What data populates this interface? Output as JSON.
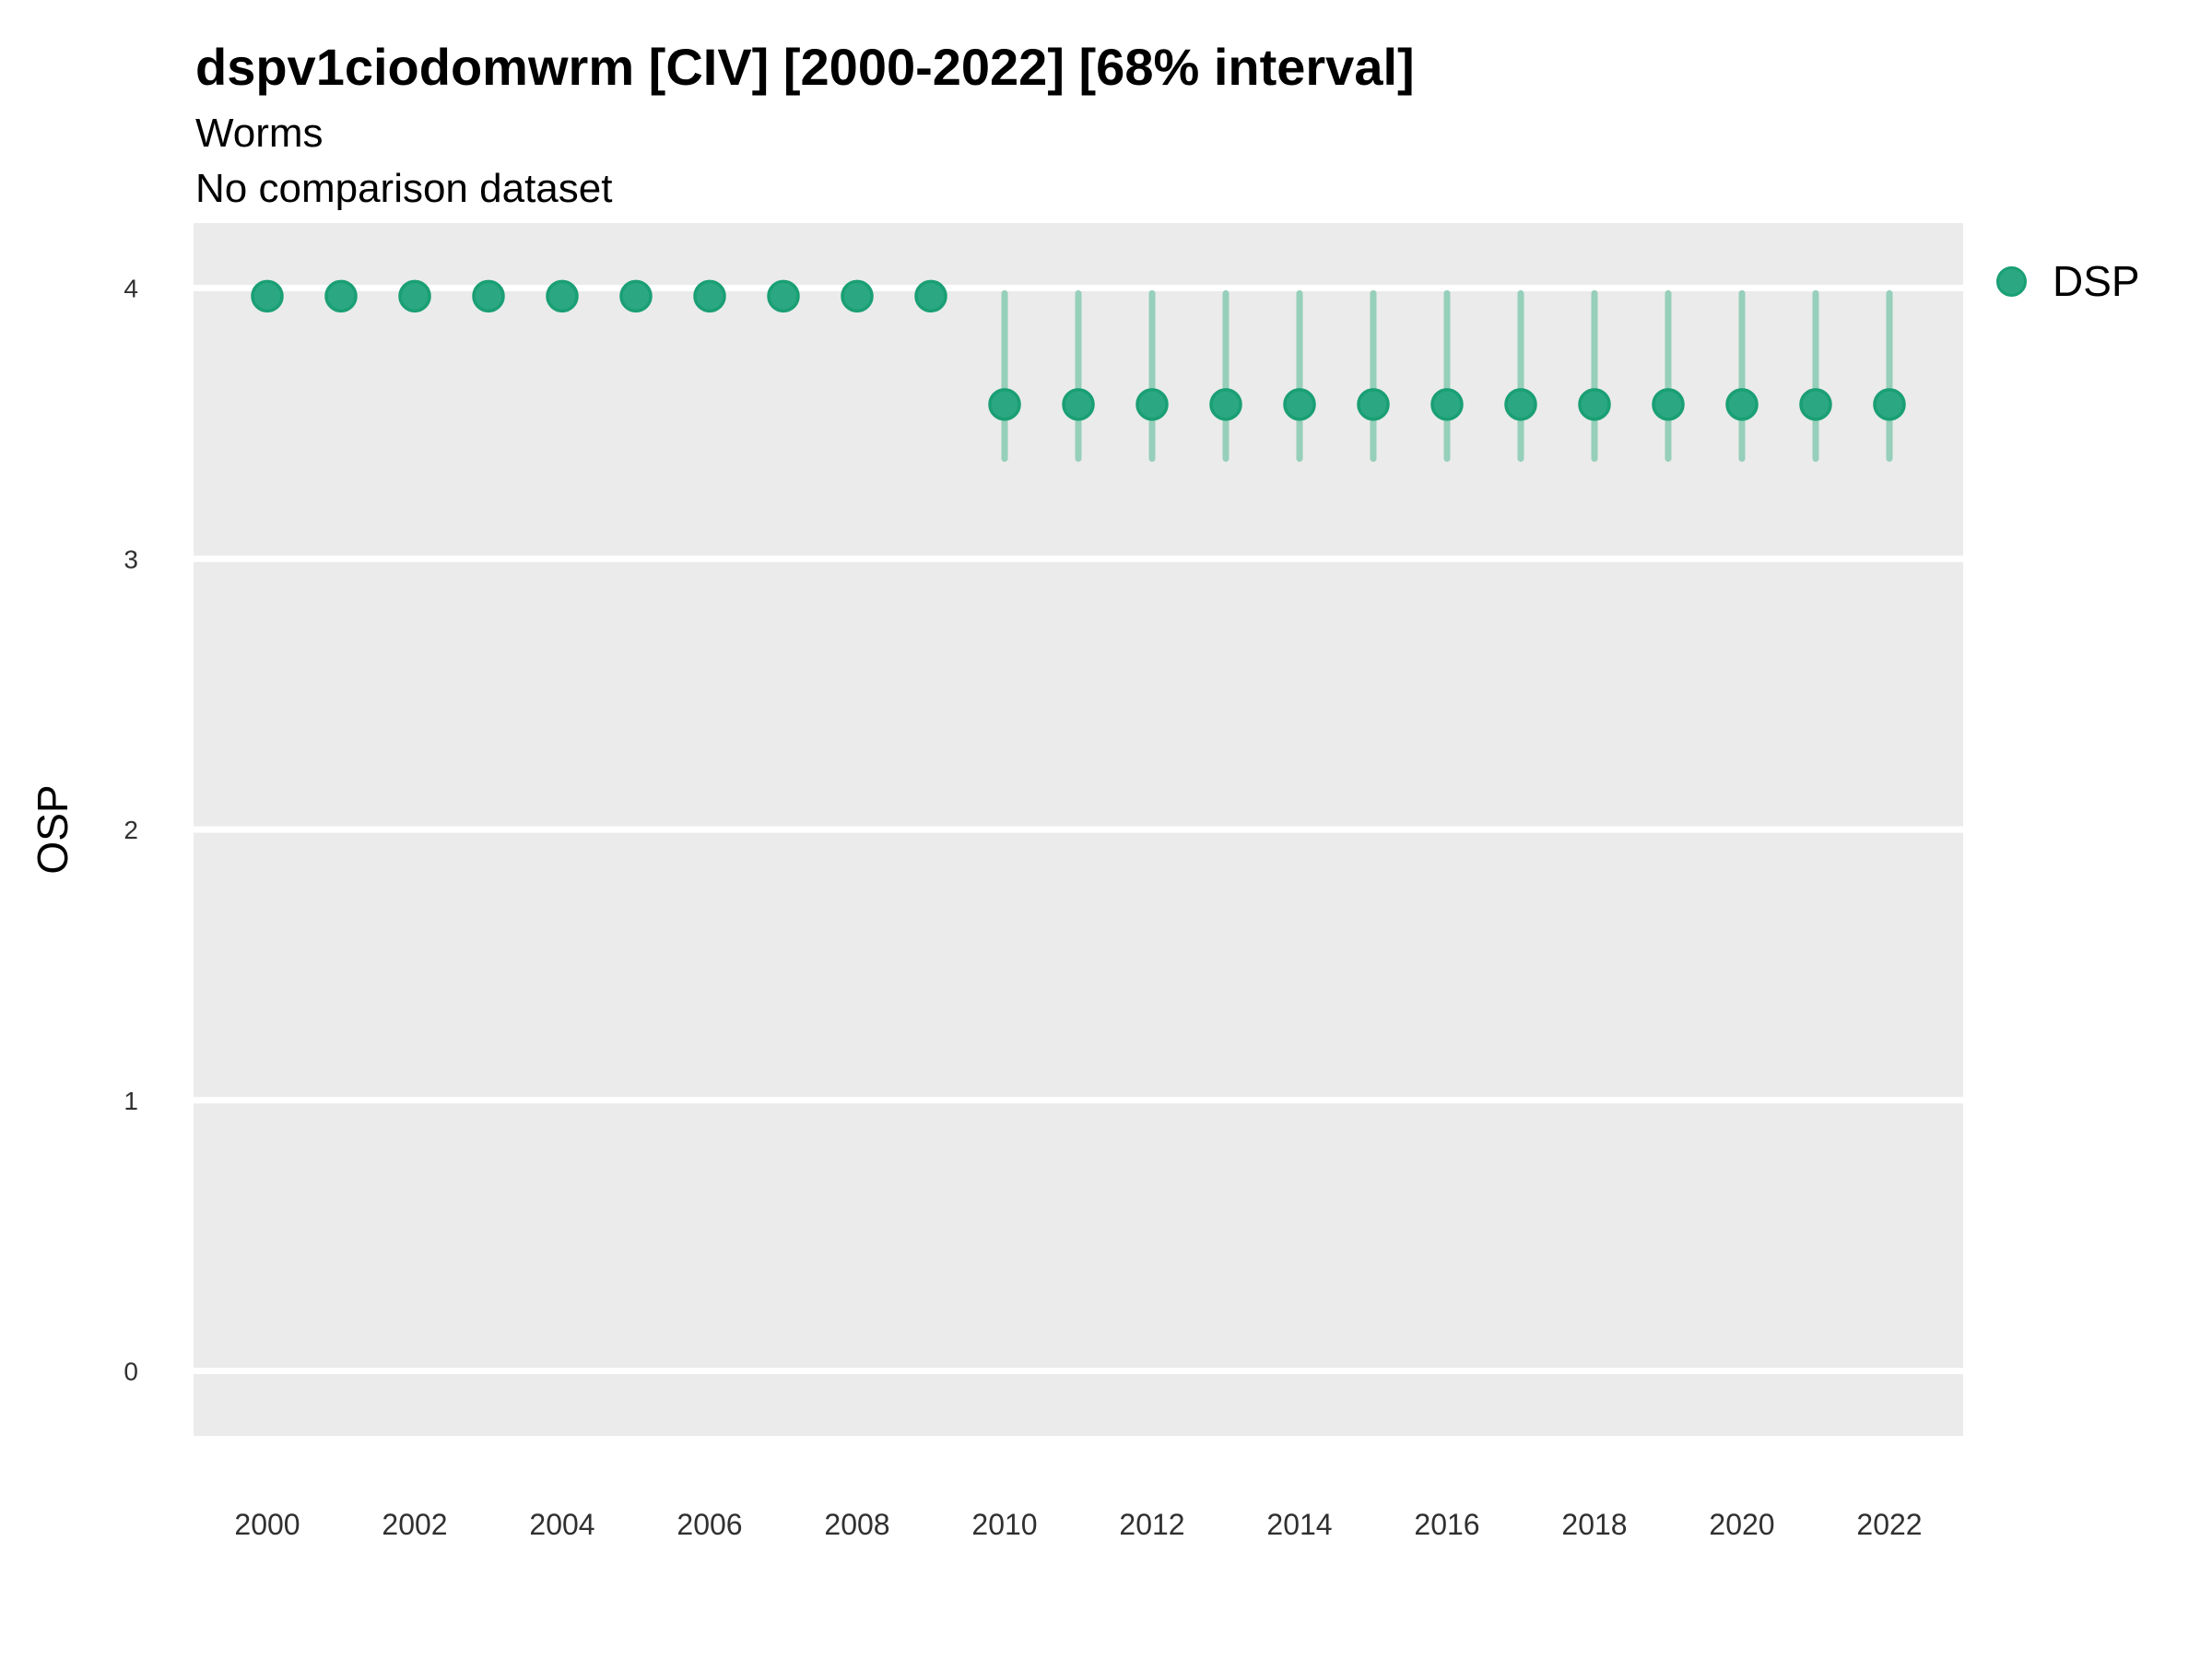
{
  "header": {
    "title": "dspv1ciodomwrm [CIV] [2000-2022] [68% interval]",
    "subtitle": "Worms",
    "dataset_note": "No comparison dataset"
  },
  "axes": {
    "ylabel": "OSP"
  },
  "legend": {
    "entries": [
      {
        "label": "DSP"
      }
    ]
  },
  "colors": {
    "panel_bg": "#EBEBEB",
    "gridline": "#FFFFFF",
    "point_fill": "#2BA881",
    "point_stroke": "#1A9F74",
    "interval": "#96CFBA",
    "tick_text": "#303030",
    "text": "#000000"
  },
  "chart_data": {
    "type": "pointrange",
    "title": "dspv1ciodomwrm [CIV] [2000-2022] [68% interval]",
    "subtitle": [
      "Worms",
      "No comparison dataset"
    ],
    "xlabel": "",
    "ylabel": "OSP",
    "xlim": [
      1999,
      2023
    ],
    "ylim": [
      -0.24,
      4.24
    ],
    "x_ticks": [
      2000,
      2002,
      2004,
      2006,
      2008,
      2010,
      2012,
      2014,
      2016,
      2018,
      2020,
      2022
    ],
    "y_ticks": [
      0,
      1,
      2,
      3,
      4
    ],
    "grid": "horizontal-major-only",
    "legend_position": "right",
    "interval_note": "68% interval",
    "series": [
      {
        "name": "DSP",
        "points": [
          {
            "x": 2000,
            "y": 3.97,
            "lo": null,
            "hi": null
          },
          {
            "x": 2001,
            "y": 3.97,
            "lo": null,
            "hi": null
          },
          {
            "x": 2002,
            "y": 3.97,
            "lo": null,
            "hi": null
          },
          {
            "x": 2003,
            "y": 3.97,
            "lo": null,
            "hi": null
          },
          {
            "x": 2004,
            "y": 3.97,
            "lo": null,
            "hi": null
          },
          {
            "x": 2005,
            "y": 3.97,
            "lo": null,
            "hi": null
          },
          {
            "x": 2006,
            "y": 3.97,
            "lo": null,
            "hi": null
          },
          {
            "x": 2007,
            "y": 3.97,
            "lo": null,
            "hi": null
          },
          {
            "x": 2008,
            "y": 3.97,
            "lo": null,
            "hi": null
          },
          {
            "x": 2009,
            "y": 3.97,
            "lo": null,
            "hi": null
          },
          {
            "x": 2010,
            "y": 3.57,
            "lo": 3.37,
            "hi": 3.98
          },
          {
            "x": 2011,
            "y": 3.57,
            "lo": 3.37,
            "hi": 3.98
          },
          {
            "x": 2012,
            "y": 3.57,
            "lo": 3.37,
            "hi": 3.98
          },
          {
            "x": 2013,
            "y": 3.57,
            "lo": 3.37,
            "hi": 3.98
          },
          {
            "x": 2014,
            "y": 3.57,
            "lo": 3.37,
            "hi": 3.98
          },
          {
            "x": 2015,
            "y": 3.57,
            "lo": 3.37,
            "hi": 3.98
          },
          {
            "x": 2016,
            "y": 3.57,
            "lo": 3.37,
            "hi": 3.98
          },
          {
            "x": 2017,
            "y": 3.57,
            "lo": 3.37,
            "hi": 3.98
          },
          {
            "x": 2018,
            "y": 3.57,
            "lo": 3.37,
            "hi": 3.98
          },
          {
            "x": 2019,
            "y": 3.57,
            "lo": 3.37,
            "hi": 3.98
          },
          {
            "x": 2020,
            "y": 3.57,
            "lo": 3.37,
            "hi": 3.98
          },
          {
            "x": 2021,
            "y": 3.57,
            "lo": 3.37,
            "hi": 3.98
          },
          {
            "x": 2022,
            "y": 3.57,
            "lo": 3.37,
            "hi": 3.98
          }
        ]
      }
    ]
  }
}
